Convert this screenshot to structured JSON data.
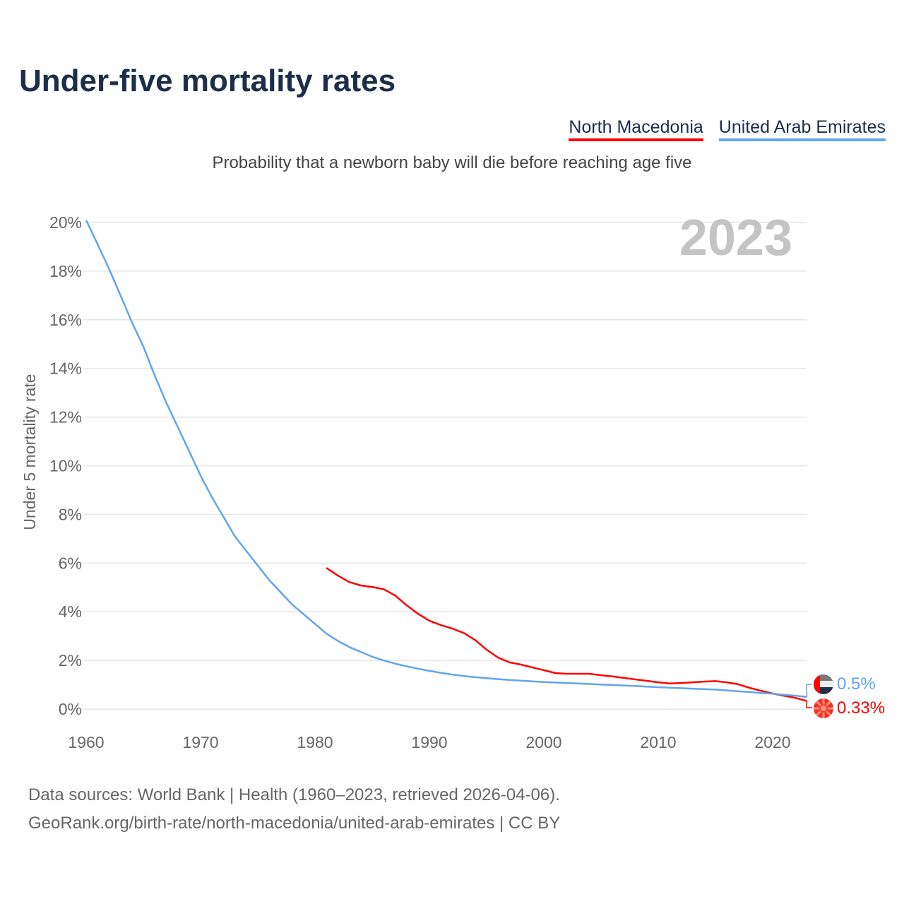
{
  "chart_data": {
    "type": "line",
    "title": "Under-five mortality rates",
    "subtitle": "Probability that a newborn baby will die before reaching age five",
    "ylabel": "Under 5 mortality rate",
    "xlabel": "",
    "ylim": [
      0,
      20
    ],
    "xlim": [
      1960,
      2023
    ],
    "yticks": [
      "0%",
      "2%",
      "4%",
      "6%",
      "8%",
      "10%",
      "12%",
      "14%",
      "16%",
      "18%",
      "20%"
    ],
    "xticks": [
      "1960",
      "1970",
      "1980",
      "1990",
      "2000",
      "2010",
      "2020"
    ],
    "year_label": "2023",
    "grid": true,
    "legend_position": "top-right",
    "series": [
      {
        "name": "North Macedonia",
        "color": "#ff0000",
        "end_label": "0.33%",
        "start": 1981,
        "values": [
          5.8,
          5.49,
          5.22,
          5.08,
          5.02,
          4.93,
          4.67,
          4.27,
          3.92,
          3.63,
          3.45,
          3.31,
          3.13,
          2.84,
          2.44,
          2.12,
          1.92,
          1.83,
          1.71,
          1.6,
          1.48,
          1.45,
          1.45,
          1.45,
          1.39,
          1.34,
          1.28,
          1.22,
          1.16,
          1.1,
          1.05,
          1.07,
          1.1,
          1.13,
          1.15,
          1.1,
          1.02,
          0.87,
          0.75,
          0.64,
          0.55,
          0.46,
          0.33
        ]
      },
      {
        "name": "United Arab Emirates",
        "color": "#60a5ee",
        "end_label": "0.5%",
        "start": 1960,
        "values": [
          20.1,
          19.1,
          18.1,
          17.0,
          15.9,
          14.9,
          13.7,
          12.6,
          11.6,
          10.6,
          9.6,
          8.7,
          7.9,
          7.1,
          6.5,
          5.9,
          5.3,
          4.8,
          4.3,
          3.9,
          3.5,
          3.1,
          2.8,
          2.55,
          2.35,
          2.15,
          2.0,
          1.87,
          1.76,
          1.66,
          1.57,
          1.49,
          1.42,
          1.36,
          1.31,
          1.27,
          1.23,
          1.2,
          1.17,
          1.14,
          1.11,
          1.09,
          1.07,
          1.05,
          1.03,
          1.01,
          0.99,
          0.97,
          0.95,
          0.92,
          0.9,
          0.88,
          0.86,
          0.84,
          0.82,
          0.8,
          0.77,
          0.73,
          0.7,
          0.66,
          0.63,
          0.59,
          0.55,
          0.5
        ]
      }
    ]
  },
  "footer": {
    "line1": "Data sources: World Bank | Health (1960–2023, retrieved 2026-04-06).",
    "line2": "GeoRank.org/birth-rate/north-macedonia/united-arab-emirates | CC BY"
  }
}
